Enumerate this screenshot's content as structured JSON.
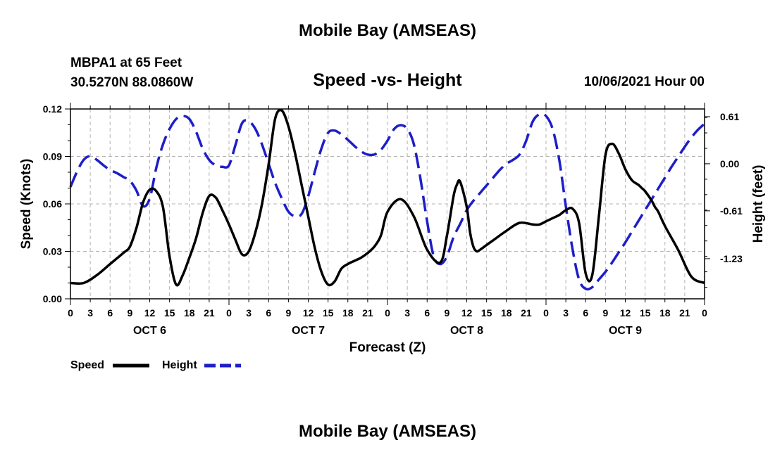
{
  "page": {
    "top_title": "Mobile Bay (AMSEAS)",
    "bottom_title": "Mobile Bay (AMSEAS)",
    "station_name": "MBPA1 at 65 Feet",
    "station_coords": "30.5270N  88.0860W",
    "date_label": "10/06/2021 Hour 00"
  },
  "chart_data": {
    "type": "line",
    "title": "Speed -vs- Height",
    "xlabel": "Forecast (Z)",
    "ylabel": "Speed (Knots)",
    "y2label": "Height (feet)",
    "x_unit": "hours from 10/06/2021 00Z",
    "xlim": [
      0,
      96
    ],
    "ylim": [
      0,
      0.12
    ],
    "y2lim": [
      -1.75,
      0.71
    ],
    "grid": true,
    "x_tick_labels": [
      "0",
      "3",
      "6",
      "9",
      "12",
      "15",
      "18",
      "21",
      "0",
      "3",
      "6",
      "9",
      "12",
      "15",
      "18",
      "21",
      "0",
      "3",
      "6",
      "9",
      "12",
      "15",
      "18",
      "21",
      "0",
      "3",
      "6",
      "9",
      "12",
      "15",
      "18",
      "21",
      "0"
    ],
    "day_labels": [
      "OCT 6",
      "OCT 7",
      "OCT 8",
      "OCT 9"
    ],
    "y_ticks": [
      "0.00",
      "0.03",
      "0.06",
      "0.09",
      "0.12"
    ],
    "y2_ticks": [
      "0.61",
      "0.00",
      "-0.61",
      "-1.23"
    ],
    "legend_position": "bottom-left",
    "series": [
      {
        "name": "Speed",
        "axis": "left",
        "color": "#000000",
        "style": "solid",
        "x": [
          0,
          2,
          4,
          6,
          8,
          9,
          10,
          11,
          12,
          13,
          14,
          15,
          16,
          17,
          18,
          19,
          20,
          21,
          22,
          23,
          24,
          25,
          26,
          27,
          28,
          29,
          30,
          31,
          32,
          33,
          34,
          35,
          36,
          37,
          38,
          39,
          40,
          41,
          42,
          43,
          44,
          45,
          46,
          47,
          48,
          50,
          52,
          54,
          56,
          57,
          58,
          58.5,
          59,
          60,
          60.5,
          61,
          61.5,
          62,
          63,
          64,
          66,
          68,
          70,
          71,
          72,
          73,
          74,
          75,
          76,
          77,
          78,
          79,
          80,
          81,
          82,
          83,
          84,
          85,
          86,
          86.5,
          87,
          88,
          88.5,
          89,
          90,
          92,
          94,
          96
        ],
        "y": [
          0.01,
          0.01,
          0.015,
          0.022,
          0.029,
          0.033,
          0.045,
          0.061,
          0.069,
          0.068,
          0.058,
          0.027,
          0.009,
          0.015,
          0.026,
          0.038,
          0.054,
          0.065,
          0.064,
          0.056,
          0.047,
          0.037,
          0.028,
          0.03,
          0.042,
          0.06,
          0.085,
          0.114,
          0.119,
          0.109,
          0.092,
          0.072,
          0.052,
          0.032,
          0.017,
          0.009,
          0.011,
          0.019,
          0.022,
          0.024,
          0.026,
          0.029,
          0.033,
          0.04,
          0.055,
          0.063,
          0.052,
          0.031,
          0.023,
          0.04,
          0.065,
          0.072,
          0.074,
          0.058,
          0.042,
          0.033,
          0.03,
          0.031,
          0.034,
          0.037,
          0.043,
          0.048,
          0.047,
          0.047,
          0.049,
          0.051,
          0.053,
          0.056,
          0.057,
          0.048,
          0.016,
          0.015,
          0.052,
          0.091,
          0.098,
          0.092,
          0.082,
          0.075,
          0.072,
          0.07,
          0.068,
          0.062,
          0.058,
          0.055,
          0.046,
          0.031,
          0.014,
          0.01
        ]
      },
      {
        "name": "Height",
        "axis": "right",
        "color": "#1e1ec8",
        "style": "dashed",
        "x": [
          0,
          1,
          2,
          3,
          4,
          5,
          6,
          7,
          8,
          9,
          10,
          11,
          12,
          13,
          14,
          15,
          16,
          17,
          18,
          19,
          20,
          21,
          22,
          23,
          24,
          25,
          26,
          27,
          28,
          29,
          30,
          31,
          32,
          33,
          34,
          35,
          36,
          37,
          38,
          39,
          40,
          41,
          42,
          43,
          44,
          45,
          46,
          47,
          48,
          49,
          50,
          51,
          52,
          53,
          54,
          55,
          56,
          57,
          58,
          59,
          60,
          61,
          62,
          63,
          64,
          65,
          66,
          67,
          68,
          69,
          70,
          71,
          72,
          73,
          74,
          75,
          76,
          77,
          78,
          79,
          80,
          81,
          82,
          83,
          84,
          85,
          86,
          87,
          88,
          89,
          90,
          91,
          92,
          93,
          94,
          95,
          96
        ],
        "y": [
          -0.3,
          -0.1,
          0.05,
          0.1,
          0.05,
          -0.02,
          -0.08,
          -0.12,
          -0.17,
          -0.22,
          -0.35,
          -0.55,
          -0.45,
          -0.05,
          0.25,
          0.45,
          0.58,
          0.62,
          0.58,
          0.42,
          0.2,
          0.05,
          -0.02,
          -0.04,
          -0.02,
          0.25,
          0.53,
          0.55,
          0.45,
          0.25,
          0.0,
          -0.25,
          -0.45,
          -0.62,
          -0.68,
          -0.65,
          -0.42,
          -0.1,
          0.2,
          0.4,
          0.43,
          0.38,
          0.31,
          0.23,
          0.16,
          0.12,
          0.12,
          0.18,
          0.3,
          0.45,
          0.5,
          0.45,
          0.25,
          -0.2,
          -0.75,
          -1.2,
          -1.3,
          -1.2,
          -0.95,
          -0.78,
          -0.6,
          -0.48,
          -0.38,
          -0.28,
          -0.18,
          -0.08,
          0.0,
          0.05,
          0.12,
          0.3,
          0.55,
          0.64,
          0.62,
          0.45,
          0.05,
          -0.55,
          -1.1,
          -1.5,
          -1.62,
          -1.6,
          -1.5,
          -1.4,
          -1.28,
          -1.15,
          -1.02,
          -0.88,
          -0.74,
          -0.6,
          -0.46,
          -0.32,
          -0.18,
          -0.04,
          0.09,
          0.22,
          0.34,
          0.44,
          0.52
        ]
      }
    ]
  }
}
